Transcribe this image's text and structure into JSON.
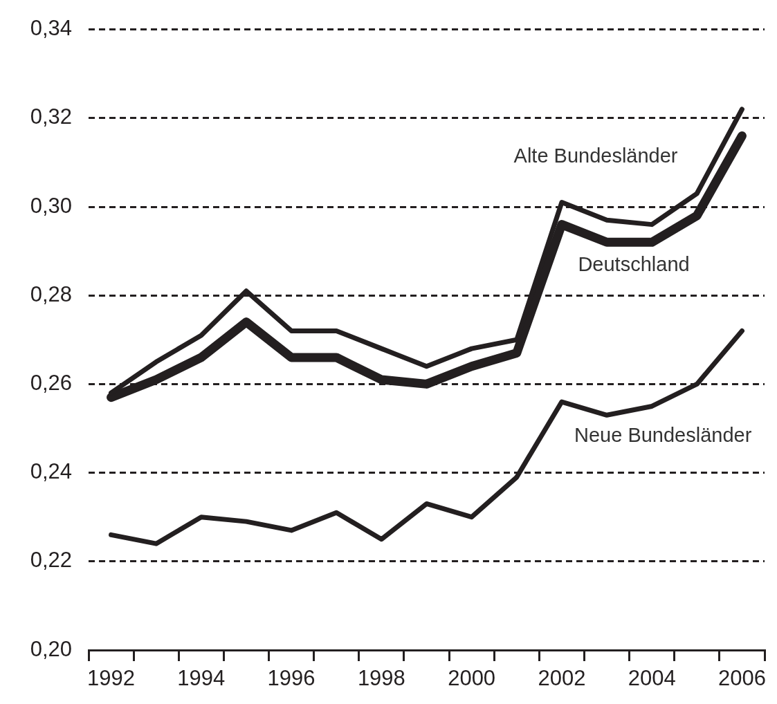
{
  "chart_data": {
    "type": "line",
    "categories": [
      "1992",
      null,
      "1994",
      null,
      "1996",
      null,
      "1998",
      null,
      "2000",
      null,
      "2002",
      null,
      "2004",
      null,
      "2006"
    ],
    "series": [
      {
        "name": "Alte Bundesländer",
        "color": "#231f20",
        "values": [
          0.258,
          0.265,
          0.271,
          0.281,
          0.272,
          0.272,
          0.268,
          0.264,
          0.268,
          0.27,
          0.301,
          0.297,
          0.296,
          0.303,
          0.322
        ]
      },
      {
        "name": "Deutschland",
        "color": "#231f20",
        "values": [
          0.257,
          0.261,
          0.266,
          0.274,
          0.266,
          0.266,
          0.261,
          0.26,
          0.264,
          0.267,
          0.296,
          0.292,
          0.292,
          0.298,
          0.316
        ]
      },
      {
        "name": "Neue Bundesländer",
        "color": "#231f20",
        "values": [
          0.226,
          0.224,
          0.23,
          0.229,
          0.227,
          0.231,
          0.225,
          0.233,
          0.23,
          0.239,
          0.256,
          0.253,
          0.255,
          0.26,
          0.272
        ]
      }
    ],
    "ylim": [
      0.2,
      0.34
    ],
    "yticks": [
      {
        "value": 0.2,
        "label": "0,20"
      },
      {
        "value": 0.22,
        "label": "0,22"
      },
      {
        "value": 0.24,
        "label": "0,24"
      },
      {
        "value": 0.26,
        "label": "0,26"
      },
      {
        "value": 0.28,
        "label": "0,28"
      },
      {
        "value": 0.3,
        "label": "0,30"
      },
      {
        "value": 0.32,
        "label": "0,32"
      },
      {
        "value": 0.34,
        "label": "0,34"
      }
    ],
    "grid": "y",
    "marker": "none",
    "line_style": "solid"
  }
}
